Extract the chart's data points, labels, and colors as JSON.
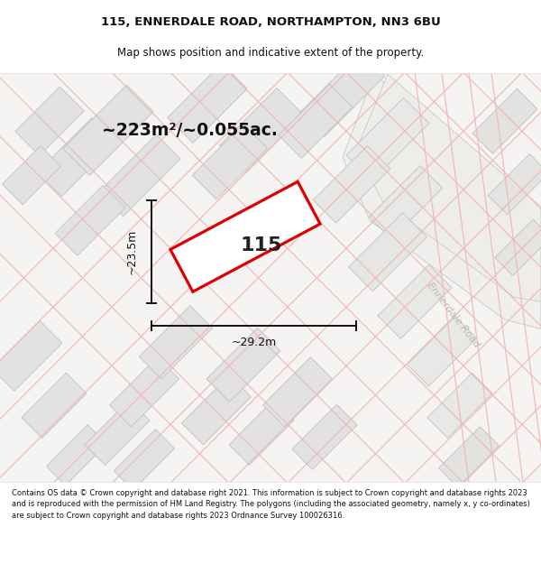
{
  "title_line1": "115, ENNERDALE ROAD, NORTHAMPTON, NN3 6BU",
  "title_line2": "Map shows position and indicative extent of the property.",
  "footer_text": "Contains OS data © Crown copyright and database right 2021. This information is subject to Crown copyright and database rights 2023 and is reproduced with the permission of HM Land Registry. The polygons (including the associated geometry, namely x, y co-ordinates) are subject to Crown copyright and database rights 2023 Ordnance Survey 100026316.",
  "area_label": "~223m²/~0.055ac.",
  "width_label": "~29.2m",
  "height_label": "~23.5m",
  "plot_number": "115",
  "road_label": "Ennerdale Road",
  "bg_color": "#f5f4f2",
  "building_color": "#e2e2e2",
  "building_edge": "#c0c0c0",
  "pink": "#f0b8b8",
  "plot_edge": "#dd0000",
  "plot_fill": "#ffffff",
  "dim_color": "#111111",
  "road_label_color": "#c0b8b0"
}
